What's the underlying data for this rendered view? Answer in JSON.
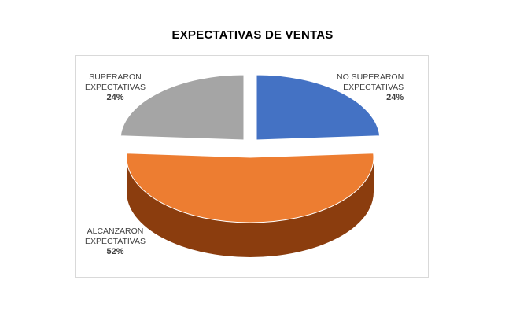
{
  "chart_data": {
    "type": "pie",
    "title": "EXPECTATIVAS DE VENTAS",
    "slices": [
      {
        "label_lines": [
          "NO SUPERARON",
          "EXPECTATIVAS"
        ],
        "value": 24,
        "value_label": "24%",
        "color": "#4472C4",
        "side_color": "#203864"
      },
      {
        "label_lines": [
          "ALCANZARON",
          "EXPECTATIVAS"
        ],
        "value": 52,
        "value_label": "52%",
        "color": "#ED7D31",
        "side_color": "#8B3D0E"
      },
      {
        "label_lines": [
          "SUPERARON",
          "EXPECTATIVAS"
        ],
        "value": 24,
        "value_label": "24%",
        "color": "#A5A5A5",
        "side_color": "#404040"
      }
    ]
  }
}
